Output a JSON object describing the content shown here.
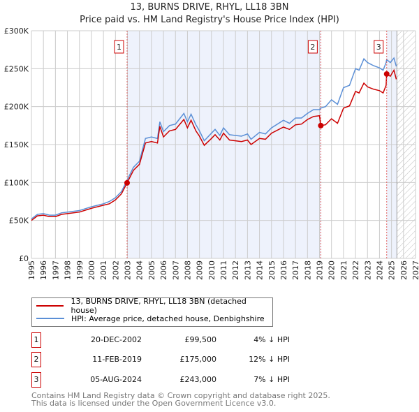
{
  "chart_data": {
    "type": "line",
    "title": "13, BURNS DRIVE, RHYL, LL18 3BN",
    "subtitle": "Price paid vs. HM Land Registry's House Price Index (HPI)",
    "xlim": [
      1995,
      2027
    ],
    "ylim": [
      0,
      300000
    ],
    "xticks": [
      "1995",
      "1996",
      "1997",
      "1998",
      "1999",
      "2000",
      "2001",
      "2002",
      "2003",
      "2004",
      "2005",
      "2006",
      "2007",
      "2008",
      "2009",
      "2010",
      "2011",
      "2012",
      "2013",
      "2014",
      "2015",
      "2016",
      "2017",
      "2018",
      "2019",
      "2020",
      "2021",
      "2022",
      "2023",
      "2024",
      "2025",
      "2026",
      "2027"
    ],
    "yticks": [
      {
        "v": 0,
        "label": "£0"
      },
      {
        "v": 50000,
        "label": "£50K"
      },
      {
        "v": 100000,
        "label": "£100K"
      },
      {
        "v": 150000,
        "label": "£150K"
      },
      {
        "v": 200000,
        "label": "£200K"
      },
      {
        "v": 250000,
        "label": "£250K"
      },
      {
        "v": 300000,
        "label": "£300K"
      }
    ],
    "grid": true,
    "data_end": 2025.45,
    "colors": {
      "price": "#cc0000",
      "hpi": "#5b8fd6",
      "shade": "#eef2fc"
    },
    "series": [
      {
        "name": "13, BURNS DRIVE, RHYL, LL18 3BN (detached house)",
        "x": [
          1995,
          1995.5,
          1996,
          1996.5,
          1997,
          1997.5,
          1998,
          1999,
          2000,
          2001,
          2001.5,
          2002,
          2002.5,
          2002.97,
          2003.5,
          2004,
          2004.5,
          2005,
          2005.5,
          2005.7,
          2006,
          2006.5,
          2007,
          2007.7,
          2008,
          2008.3,
          2008.7,
          2009,
          2009.4,
          2010,
          2010.3,
          2010.7,
          2011,
          2011.5,
          2012,
          2012.5,
          2013,
          2013.3,
          2014,
          2014.5,
          2015,
          2016,
          2016.5,
          2017,
          2017.5,
          2018,
          2018.5,
          2019.0,
          2019.11,
          2019.5,
          2020,
          2020.5,
          2021,
          2021.5,
          2022,
          2022.3,
          2022.7,
          2023,
          2023.5,
          2024,
          2024.3,
          2024.55,
          2024.6,
          2024.9,
          2025.2,
          2025.4
        ],
        "values": [
          50,
          56,
          57,
          55,
          55,
          58,
          59,
          61,
          66,
          70,
          72,
          77,
          85,
          99.5,
          116,
          124,
          152,
          154,
          152,
          174,
          160,
          168,
          170,
          183,
          172,
          182,
          168,
          161,
          149,
          158,
          163,
          156,
          165,
          156,
          155,
          154,
          156,
          150,
          158,
          157,
          165,
          173,
          170,
          176,
          177,
          183,
          187,
          188,
          175,
          176,
          184,
          178,
          198,
          201,
          220,
          218,
          231,
          226,
          223,
          221,
          218,
          228,
          243,
          240,
          248,
          236
        ]
      },
      {
        "name": "HPI: Average price, detached house, Denbighshire",
        "x": [
          1995,
          1995.5,
          1996,
          1996.5,
          1997,
          1997.5,
          1998,
          1999,
          2000,
          2001,
          2001.5,
          2002,
          2002.5,
          2002.97,
          2003.5,
          2004,
          2004.5,
          2005,
          2005.5,
          2005.7,
          2006,
          2006.5,
          2007,
          2007.7,
          2008,
          2008.3,
          2008.7,
          2009,
          2009.4,
          2010,
          2010.3,
          2010.7,
          2011,
          2011.5,
          2012,
          2012.5,
          2013,
          2013.3,
          2014,
          2014.5,
          2015,
          2016,
          2016.5,
          2017,
          2017.5,
          2018,
          2018.5,
          2019.0,
          2019.11,
          2019.5,
          2020,
          2020.5,
          2021,
          2021.5,
          2022,
          2022.3,
          2022.7,
          2023,
          2023.5,
          2024,
          2024.3,
          2024.55,
          2024.6,
          2024.9,
          2025.2,
          2025.4
        ],
        "values": [
          52,
          58,
          59,
          57,
          57,
          60,
          61,
          63,
          68,
          72,
          75,
          80,
          88,
          103,
          120,
          128,
          158,
          160,
          158,
          180,
          167,
          175,
          177,
          191,
          180,
          190,
          176,
          168,
          155,
          165,
          170,
          162,
          172,
          163,
          162,
          161,
          164,
          157,
          166,
          164,
          172,
          182,
          178,
          185,
          185,
          191,
          196,
          196,
          198,
          200,
          209,
          203,
          225,
          228,
          250,
          248,
          263,
          258,
          254,
          251,
          248,
          258,
          262,
          258,
          264,
          253
        ]
      }
    ],
    "sales": [
      {
        "label": "1",
        "x": 2002.97,
        "price": 99500
      },
      {
        "label": "2",
        "x": 2019.11,
        "price": 175000
      },
      {
        "label": "3",
        "x": 2024.6,
        "price": 243000
      }
    ]
  },
  "legend": {
    "price": "13, BURNS DRIVE, RHYL, LL18 3BN (detached house)",
    "hpi": "HPI: Average price, detached house, Denbighshire"
  },
  "table": [
    {
      "num": "1",
      "date": "20-DEC-2002",
      "price": "£99,500",
      "hpi": "4% ↓ HPI"
    },
    {
      "num": "2",
      "date": "11-FEB-2019",
      "price": "£175,000",
      "hpi": "12% ↓ HPI"
    },
    {
      "num": "3",
      "date": "05-AUG-2024",
      "price": "£243,000",
      "hpi": "7% ↓ HPI"
    }
  ],
  "footer": {
    "line1": "Contains HM Land Registry data © Crown copyright and database right 2025.",
    "line2": "This data is licensed under the Open Government Licence v3.0."
  }
}
